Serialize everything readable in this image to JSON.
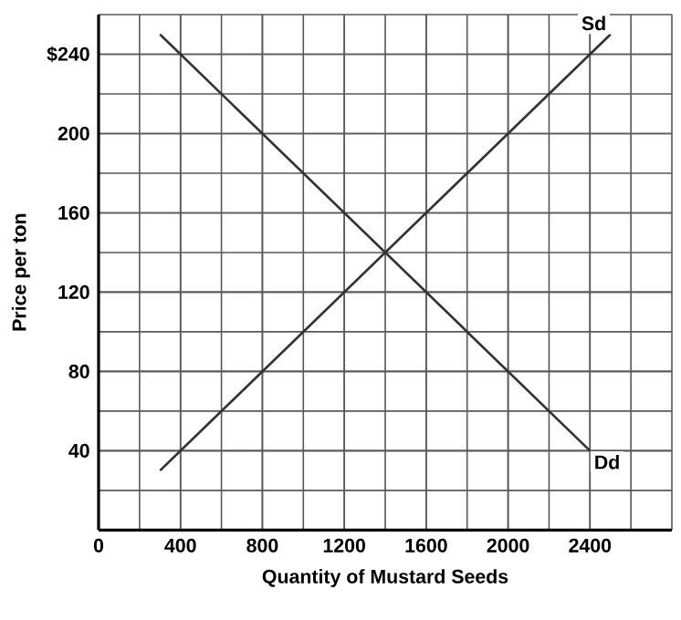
{
  "chart_data": {
    "type": "line",
    "xlabel": "Quantity of Mustard Seeds",
    "ylabel": "Price per ton",
    "series": [
      {
        "x": [
          300,
          2500
        ],
        "values": [
          30,
          250
        ],
        "color": "#333333"
      },
      {
        "x": [
          300,
          2400
        ],
        "values": [
          250,
          40
        ],
        "color": "#333333"
      }
    ],
    "annotations": [
      {
        "text": "Sd",
        "x": 2500,
        "y": 250
      },
      {
        "text": "Dd",
        "x": 2400,
        "y": 40
      }
    ],
    "xlim": [
      0,
      2800
    ],
    "ylim": [
      0,
      260
    ],
    "xticks": [
      0,
      400,
      800,
      1200,
      1600,
      2000,
      2400
    ],
    "yticks": [
      40,
      80,
      120,
      160,
      200,
      {
        "value": 240,
        "label": "$240"
      }
    ],
    "grid": true,
    "marker": "none",
    "line_style": "solid"
  }
}
